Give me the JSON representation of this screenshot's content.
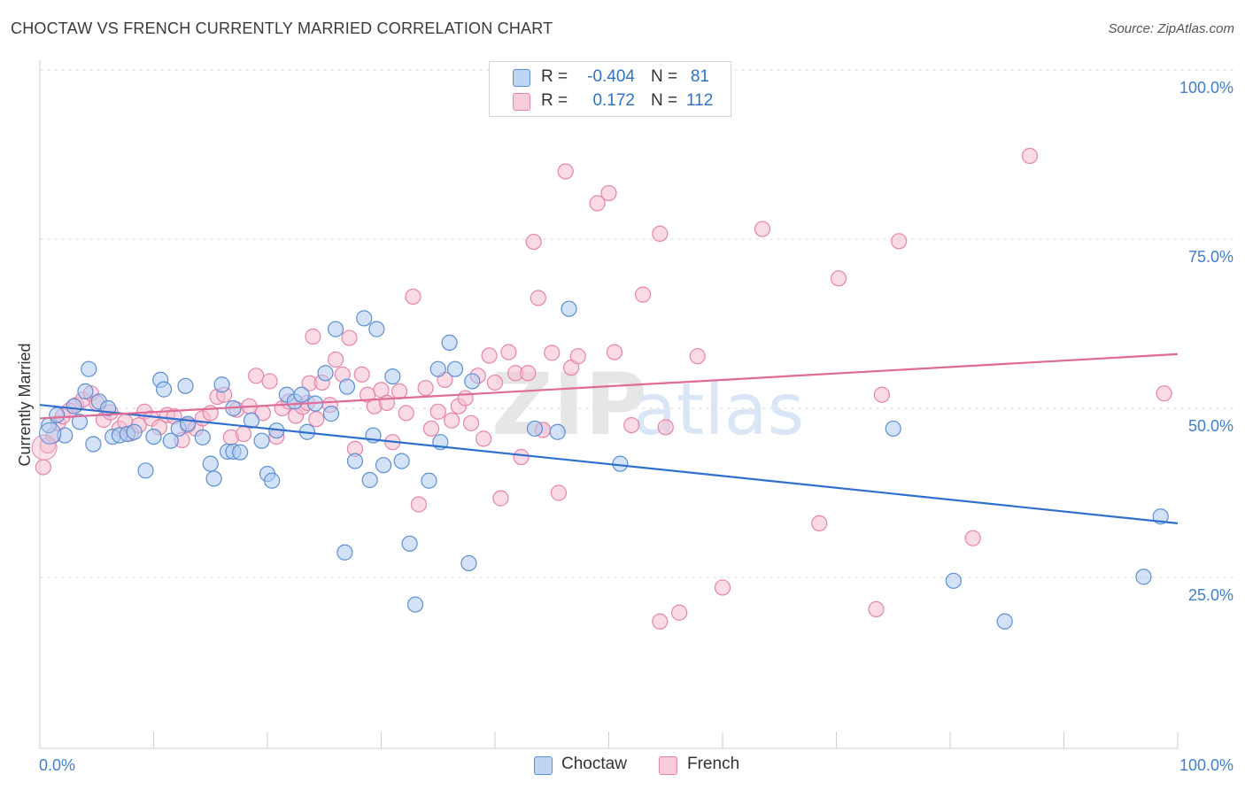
{
  "title": "CHOCTAW VS FRENCH CURRENTLY MARRIED CORRELATION CHART",
  "source": "Source: ZipAtlas.com",
  "watermark": {
    "zip": "ZIP",
    "atlas": "atlas"
  },
  "legend": {
    "rows": [
      {
        "r_label": "R =",
        "r_value": "-0.404",
        "n_label": "N =",
        "n_value": "81"
      },
      {
        "r_label": "R =",
        "r_value": "0.172",
        "n_label": "N =",
        "n_value": "112"
      }
    ]
  },
  "bottom_legend": {
    "choctaw": "Choctaw",
    "french": "French"
  },
  "colors": {
    "choctaw_fill": "#aecbf0",
    "choctaw_stroke": "#5b8fd6",
    "choctaw_line": "#2f6fcf",
    "french_fill": "#f6bdd0",
    "french_stroke": "#e884a8",
    "french_line": "#e06b97",
    "tick_label": "#3f7fd0"
  },
  "chart_data": {
    "type": "scatter",
    "title": "CHOCTAW VS FRENCH CURRENTLY MARRIED CORRELATION CHART",
    "xlabel": "",
    "ylabel": "Currently Married",
    "xlim": [
      0,
      100
    ],
    "ylim": [
      0,
      105
    ],
    "x_tick_labels": [
      "0.0%",
      "100.0%"
    ],
    "y_ticks": [
      25,
      50,
      75,
      100
    ],
    "y_tick_labels": [
      "25.0%",
      "50.0%",
      "75.0%",
      "100.0%"
    ],
    "grid": true,
    "series": [
      {
        "name": "Choctaw",
        "r": -0.404,
        "n": 81,
        "trend": {
          "x": [
            0,
            100
          ],
          "y": [
            50.5,
            33.0
          ]
        },
        "points": [
          [
            0.8,
            47.5
          ],
          [
            1.5,
            49.0
          ],
          [
            2.2,
            46.0
          ],
          [
            3.0,
            50.3
          ],
          [
            3.5,
            48.0
          ],
          [
            4.0,
            52.5
          ],
          [
            4.3,
            55.8
          ],
          [
            4.7,
            44.7
          ],
          [
            5.2,
            51.0
          ],
          [
            6.0,
            50.0
          ],
          [
            6.4,
            45.8
          ],
          [
            7.0,
            46.0
          ],
          [
            7.7,
            46.2
          ],
          [
            8.3,
            46.5
          ],
          [
            9.3,
            40.8
          ],
          [
            10.0,
            45.8
          ],
          [
            10.6,
            54.2
          ],
          [
            10.9,
            52.8
          ],
          [
            11.5,
            45.2
          ],
          [
            12.2,
            47.0
          ],
          [
            12.8,
            53.3
          ],
          [
            13.0,
            47.7
          ],
          [
            14.3,
            45.7
          ],
          [
            15.0,
            41.8
          ],
          [
            15.3,
            39.6
          ],
          [
            16.0,
            53.5
          ],
          [
            16.5,
            43.6
          ],
          [
            17.0,
            43.6
          ],
          [
            17.6,
            43.5
          ],
          [
            17.0,
            50.0
          ],
          [
            18.6,
            48.2
          ],
          [
            19.5,
            45.2
          ],
          [
            20.0,
            40.3
          ],
          [
            20.4,
            39.3
          ],
          [
            20.8,
            46.7
          ],
          [
            21.7,
            52.0
          ],
          [
            22.4,
            51.0
          ],
          [
            23.0,
            52.0
          ],
          [
            23.5,
            46.5
          ],
          [
            24.2,
            50.7
          ],
          [
            25.1,
            55.2
          ],
          [
            25.6,
            49.2
          ],
          [
            26.0,
            61.7
          ],
          [
            26.8,
            28.7
          ],
          [
            27.0,
            53.2
          ],
          [
            27.7,
            42.2
          ],
          [
            28.5,
            63.3
          ],
          [
            29.0,
            39.4
          ],
          [
            29.3,
            46.0
          ],
          [
            29.6,
            61.7
          ],
          [
            30.2,
            41.6
          ],
          [
            31.0,
            54.7
          ],
          [
            31.8,
            42.2
          ],
          [
            32.5,
            30.0
          ],
          [
            33.0,
            21.0
          ],
          [
            34.2,
            39.3
          ],
          [
            35.0,
            55.8
          ],
          [
            35.2,
            45.0
          ],
          [
            36.0,
            59.7
          ],
          [
            36.5,
            55.8
          ],
          [
            37.7,
            27.1
          ],
          [
            38.0,
            54.0
          ],
          [
            43.5,
            47.0
          ],
          [
            45.5,
            46.5
          ],
          [
            46.5,
            64.7
          ],
          [
            51.0,
            41.8
          ],
          [
            75.0,
            47.0
          ],
          [
            80.3,
            24.5
          ],
          [
            84.8,
            18.5
          ],
          [
            97.0,
            25.1
          ],
          [
            98.5,
            34.0
          ]
        ]
      },
      {
        "name": "French",
        "r": 0.172,
        "n": 112,
        "trend": {
          "x": [
            0,
            100
          ],
          "y": [
            48.5,
            58.0
          ]
        },
        "points": [
          [
            0.3,
            41.3
          ],
          [
            0.7,
            44.5
          ],
          [
            1.2,
            46.0
          ],
          [
            1.6,
            47.8
          ],
          [
            2.0,
            48.8
          ],
          [
            2.6,
            49.7
          ],
          [
            3.2,
            50.5
          ],
          [
            3.8,
            51.3
          ],
          [
            4.5,
            52.2
          ],
          [
            5.0,
            50.8
          ],
          [
            5.6,
            48.3
          ],
          [
            6.2,
            49.4
          ],
          [
            7.0,
            47.0
          ],
          [
            7.5,
            48.0
          ],
          [
            8.0,
            46.3
          ],
          [
            8.7,
            47.5
          ],
          [
            9.2,
            49.5
          ],
          [
            9.8,
            48.5
          ],
          [
            10.5,
            47.2
          ],
          [
            11.2,
            49.0
          ],
          [
            11.8,
            48.8
          ],
          [
            12.5,
            45.3
          ],
          [
            13.0,
            47.5
          ],
          [
            13.7,
            47.0
          ],
          [
            14.3,
            48.5
          ],
          [
            15.0,
            49.3
          ],
          [
            15.6,
            51.7
          ],
          [
            16.2,
            52.0
          ],
          [
            16.8,
            45.7
          ],
          [
            17.3,
            49.8
          ],
          [
            17.9,
            46.2
          ],
          [
            18.4,
            50.3
          ],
          [
            19.0,
            54.8
          ],
          [
            19.6,
            49.3
          ],
          [
            20.2,
            54.0
          ],
          [
            20.8,
            45.8
          ],
          [
            21.3,
            50.0
          ],
          [
            21.9,
            51.0
          ],
          [
            22.5,
            48.9
          ],
          [
            23.1,
            50.2
          ],
          [
            23.7,
            53.7
          ],
          [
            24.3,
            48.4
          ],
          [
            23.5,
            50.8
          ],
          [
            24.0,
            60.6
          ],
          [
            24.8,
            53.8
          ],
          [
            25.5,
            50.5
          ],
          [
            26.0,
            57.2
          ],
          [
            26.6,
            55.0
          ],
          [
            27.2,
            60.4
          ],
          [
            27.7,
            44.0
          ],
          [
            28.3,
            55.0
          ],
          [
            28.8,
            52.0
          ],
          [
            29.4,
            50.3
          ],
          [
            30.0,
            52.7
          ],
          [
            30.5,
            50.8
          ],
          [
            31.0,
            45.0
          ],
          [
            31.6,
            52.5
          ],
          [
            32.2,
            49.3
          ],
          [
            32.8,
            66.5
          ],
          [
            33.3,
            35.8
          ],
          [
            33.9,
            53.0
          ],
          [
            34.4,
            47.0
          ],
          [
            35.0,
            49.5
          ],
          [
            35.6,
            54.2
          ],
          [
            36.2,
            48.2
          ],
          [
            36.8,
            50.3
          ],
          [
            37.4,
            51.5
          ],
          [
            37.9,
            47.8
          ],
          [
            38.5,
            54.8
          ],
          [
            39.0,
            45.5
          ],
          [
            39.5,
            57.8
          ],
          [
            40.0,
            53.8
          ],
          [
            40.5,
            36.7
          ],
          [
            41.2,
            58.3
          ],
          [
            41.8,
            55.2
          ],
          [
            42.3,
            42.8
          ],
          [
            42.9,
            55.2
          ],
          [
            43.4,
            74.6
          ],
          [
            43.8,
            66.3
          ],
          [
            44.2,
            46.8
          ],
          [
            45.0,
            58.2
          ],
          [
            45.6,
            37.5
          ],
          [
            46.2,
            85.0
          ],
          [
            46.7,
            56.0
          ],
          [
            47.3,
            57.7
          ],
          [
            49.0,
            80.3
          ],
          [
            50.0,
            81.8
          ],
          [
            50.5,
            58.3
          ],
          [
            52.0,
            47.5
          ],
          [
            53.0,
            66.8
          ],
          [
            54.5,
            75.8
          ],
          [
            55.0,
            47.2
          ],
          [
            54.5,
            18.5
          ],
          [
            56.2,
            19.8
          ],
          [
            57.8,
            57.7
          ],
          [
            60.0,
            23.5
          ],
          [
            63.5,
            76.5
          ],
          [
            68.5,
            33.0
          ],
          [
            70.2,
            69.2
          ],
          [
            73.5,
            20.3
          ],
          [
            74.0,
            52.0
          ],
          [
            75.5,
            74.7
          ],
          [
            82.0,
            30.8
          ],
          [
            87.0,
            87.3
          ],
          [
            98.8,
            52.2
          ]
        ]
      }
    ]
  }
}
